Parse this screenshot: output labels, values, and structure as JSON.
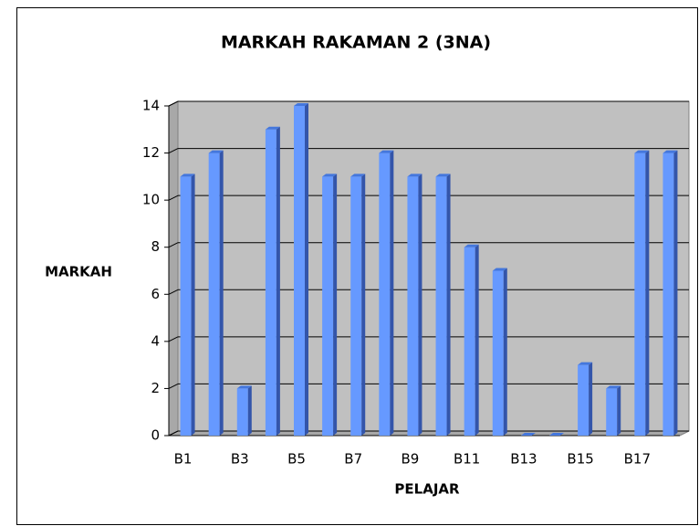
{
  "chart_data": {
    "type": "bar",
    "title": "MARKAH RAKAMAN 2 (3NA)",
    "x_label": "PELAJAR",
    "y_label": "MARKAH",
    "categories": [
      "B1",
      null,
      "B3",
      null,
      "B5",
      null,
      "B7",
      null,
      "B9",
      null,
      "B11",
      null,
      "B13",
      null,
      "B15",
      null,
      "B17",
      null
    ],
    "values": [
      11,
      12,
      2,
      13,
      14,
      11,
      11,
      12,
      11,
      11,
      8,
      7,
      0,
      0,
      3,
      2,
      12,
      12
    ],
    "color": "#6699ff",
    "ylim": [
      0,
      14
    ],
    "yticks": [
      0,
      2,
      4,
      6,
      8,
      10,
      12,
      14
    ],
    "grid": true
  }
}
